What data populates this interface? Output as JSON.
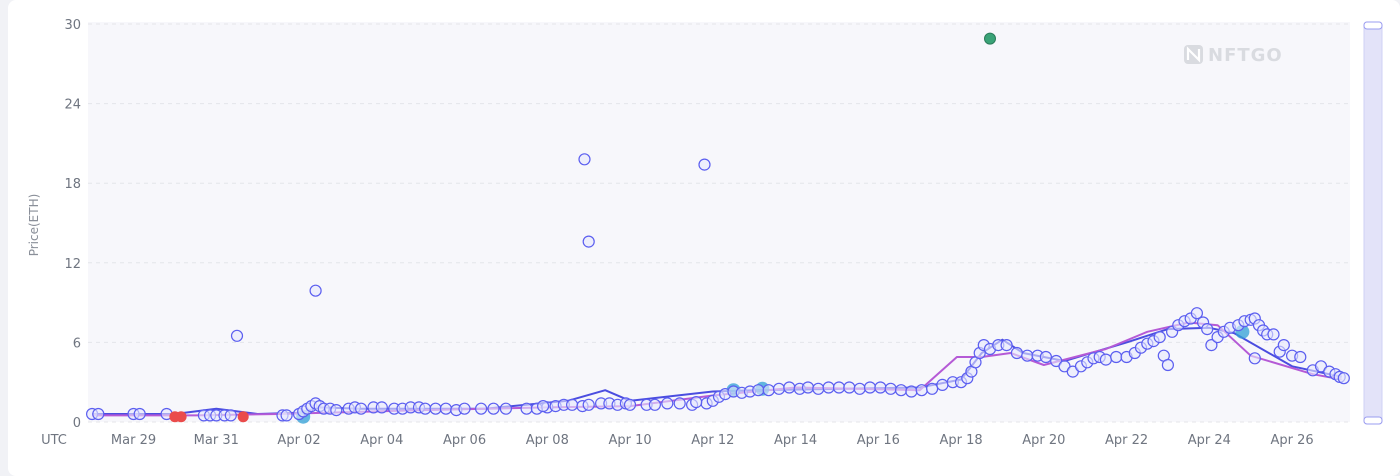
{
  "watermark": "NFTGO",
  "colors": {
    "circle_stroke": "#5b5ef0",
    "circle_fill": "#e6e7fd",
    "line_blue": "#4b4de0",
    "line_purple": "#b55ad6",
    "red_dot": "#ea4b4b",
    "green_dot": "#3aa377",
    "teal_dot": "#2f9fd6",
    "plot_bg": "#f7f7fb",
    "slider_bg": "#e3e3f9"
  },
  "chart_data": {
    "type": "scatter",
    "ylabel": "Price(ETH)",
    "ylim": [
      0,
      30
    ],
    "yticks": [
      "0",
      "6",
      "12",
      "18",
      "24",
      "30"
    ],
    "xaxis_corner_label": "UTC",
    "xticks": [
      {
        "label": "Mar 29",
        "day": 1
      },
      {
        "label": "Mar 31",
        "day": 3
      },
      {
        "label": "Apr 02",
        "day": 5
      },
      {
        "label": "Apr 04",
        "day": 7
      },
      {
        "label": "Apr 06",
        "day": 9
      },
      {
        "label": "Apr 08",
        "day": 11
      },
      {
        "label": "Apr 10",
        "day": 13
      },
      {
        "label": "Apr 12",
        "day": 15
      },
      {
        "label": "Apr 14",
        "day": 17
      },
      {
        "label": "Apr 16",
        "day": 19
      },
      {
        "label": "Apr 18",
        "day": 21
      },
      {
        "label": "Apr 20",
        "day": 23
      },
      {
        "label": "Apr 22",
        "day": 25
      },
      {
        "label": "Apr 24",
        "day": 27
      },
      {
        "label": "Apr 26",
        "day": 29
      }
    ],
    "xlim": [
      -0.1,
      30.4
    ],
    "grid": true,
    "series": [
      {
        "kind": "sales",
        "points": [
          [
            0,
            0.6
          ],
          [
            0.15,
            0.6
          ],
          [
            1.0,
            0.6
          ],
          [
            1.15,
            0.6
          ],
          [
            1.8,
            0.6
          ],
          [
            2.7,
            0.5
          ],
          [
            2.85,
            0.5
          ],
          [
            3.0,
            0.5
          ],
          [
            3.2,
            0.5
          ],
          [
            3.35,
            0.5
          ],
          [
            4.6,
            0.5
          ],
          [
            4.7,
            0.5
          ],
          [
            5.0,
            0.6
          ],
          [
            5.1,
            0.8
          ],
          [
            5.2,
            1.0
          ],
          [
            5.3,
            1.2
          ],
          [
            5.4,
            1.4
          ],
          [
            5.5,
            1.2
          ],
          [
            5.6,
            1.0
          ],
          [
            5.75,
            1.0
          ],
          [
            5.9,
            0.9
          ],
          [
            6.2,
            1.0
          ],
          [
            6.35,
            1.1
          ],
          [
            6.5,
            1.0
          ],
          [
            6.8,
            1.1
          ],
          [
            7.0,
            1.1
          ],
          [
            7.3,
            1.0
          ],
          [
            7.5,
            1.0
          ],
          [
            7.7,
            1.1
          ],
          [
            7.9,
            1.1
          ],
          [
            8.05,
            1.0
          ],
          [
            8.3,
            1.0
          ],
          [
            8.55,
            1.0
          ],
          [
            8.8,
            0.9
          ],
          [
            9.0,
            1.0
          ],
          [
            9.4,
            1.0
          ],
          [
            9.7,
            1.0
          ],
          [
            10.0,
            1.0
          ],
          [
            10.5,
            1.0
          ],
          [
            10.75,
            1.0
          ],
          [
            11.0,
            1.1
          ],
          [
            11.2,
            1.2
          ],
          [
            11.4,
            1.3
          ],
          [
            11.6,
            1.3
          ],
          [
            11.85,
            1.2
          ],
          [
            12.0,
            1.3
          ],
          [
            12.3,
            1.4
          ],
          [
            12.5,
            1.4
          ],
          [
            12.7,
            1.3
          ],
          [
            12.9,
            1.4
          ],
          [
            13.0,
            1.3
          ],
          [
            13.4,
            1.3
          ],
          [
            13.6,
            1.3
          ],
          [
            13.9,
            1.4
          ],
          [
            14.2,
            1.4
          ],
          [
            14.5,
            1.3
          ],
          [
            14.85,
            1.4
          ],
          [
            15.0,
            1.6
          ],
          [
            15.15,
            1.9
          ],
          [
            15.3,
            2.1
          ],
          [
            15.5,
            2.3
          ],
          [
            15.7,
            2.2
          ],
          [
            15.9,
            2.3
          ],
          [
            16.1,
            2.4
          ],
          [
            16.35,
            2.4
          ],
          [
            16.6,
            2.5
          ],
          [
            16.85,
            2.6
          ],
          [
            17.1,
            2.5
          ],
          [
            17.3,
            2.6
          ],
          [
            17.55,
            2.5
          ],
          [
            17.8,
            2.6
          ],
          [
            18.05,
            2.6
          ],
          [
            18.3,
            2.6
          ],
          [
            18.55,
            2.5
          ],
          [
            18.8,
            2.6
          ],
          [
            19.05,
            2.6
          ],
          [
            19.3,
            2.5
          ],
          [
            19.55,
            2.4
          ],
          [
            19.8,
            2.3
          ],
          [
            20.05,
            2.4
          ],
          [
            20.3,
            2.5
          ],
          [
            20.55,
            2.8
          ],
          [
            20.8,
            3.0
          ],
          [
            21.0,
            3.0
          ],
          [
            21.15,
            3.3
          ],
          [
            21.25,
            3.8
          ],
          [
            21.35,
            4.5
          ],
          [
            21.45,
            5.2
          ],
          [
            21.55,
            5.8
          ],
          [
            21.7,
            5.5
          ],
          [
            21.9,
            5.8
          ],
          [
            22.1,
            5.8
          ],
          [
            22.35,
            5.2
          ],
          [
            22.6,
            5.0
          ],
          [
            22.85,
            5.0
          ],
          [
            23.05,
            4.9
          ],
          [
            23.3,
            4.6
          ],
          [
            23.5,
            4.2
          ],
          [
            23.7,
            3.8
          ],
          [
            23.9,
            4.2
          ],
          [
            24.05,
            4.5
          ],
          [
            24.2,
            4.8
          ],
          [
            24.35,
            4.9
          ],
          [
            24.5,
            4.7
          ],
          [
            24.75,
            4.9
          ],
          [
            25.0,
            4.9
          ],
          [
            25.2,
            5.2
          ],
          [
            25.35,
            5.6
          ],
          [
            25.5,
            5.9
          ],
          [
            25.65,
            6.1
          ],
          [
            25.8,
            6.4
          ],
          [
            25.9,
            5.0
          ],
          [
            26.0,
            4.3
          ],
          [
            26.1,
            6.8
          ],
          [
            26.25,
            7.3
          ],
          [
            26.4,
            7.6
          ],
          [
            26.55,
            7.8
          ],
          [
            26.7,
            8.2
          ],
          [
            26.85,
            7.5
          ],
          [
            26.95,
            7.0
          ],
          [
            27.05,
            5.8
          ],
          [
            27.2,
            6.4
          ],
          [
            27.35,
            6.8
          ],
          [
            27.5,
            7.1
          ],
          [
            27.7,
            7.3
          ],
          [
            27.85,
            7.6
          ],
          [
            28.0,
            7.7
          ],
          [
            28.1,
            7.8
          ],
          [
            28.2,
            7.3
          ],
          [
            28.3,
            6.9
          ],
          [
            28.4,
            6.6
          ],
          [
            28.55,
            6.6
          ],
          [
            28.7,
            5.3
          ],
          [
            28.8,
            5.8
          ],
          [
            28.1,
            4.8
          ],
          [
            29.0,
            5.0
          ],
          [
            29.2,
            4.9
          ],
          [
            29.5,
            3.9
          ],
          [
            29.7,
            4.2
          ],
          [
            29.9,
            3.8
          ],
          [
            30.05,
            3.6
          ],
          [
            30.15,
            3.4
          ],
          [
            30.25,
            3.3
          ],
          [
            10.9,
            1.2
          ],
          [
            14.6,
            1.5
          ]
        ]
      },
      {
        "kind": "outliers",
        "points": [
          [
            3.5,
            6.5
          ],
          [
            5.4,
            9.9
          ],
          [
            11.9,
            19.8
          ],
          [
            12.0,
            13.6
          ],
          [
            14.8,
            19.4
          ]
        ]
      },
      {
        "kind": "red",
        "points": [
          [
            2.0,
            0.4
          ],
          [
            2.15,
            0.4
          ],
          [
            3.65,
            0.4
          ]
        ]
      },
      {
        "kind": "teal",
        "points": [
          [
            5.1,
            0.4
          ],
          [
            15.5,
            2.4
          ],
          [
            16.2,
            2.5
          ],
          [
            27.8,
            6.8
          ]
        ]
      },
      {
        "kind": "green",
        "points": [
          [
            21.7,
            28.9
          ]
        ]
      },
      {
        "kind": "avg-line-blue",
        "points": [
          [
            0,
            0.6
          ],
          [
            2.0,
            0.6
          ],
          [
            3.0,
            1.0
          ],
          [
            4.0,
            0.6
          ],
          [
            5.0,
            0.7
          ],
          [
            5.5,
            1.1
          ],
          [
            6.5,
            1.0
          ],
          [
            9.5,
            1.0
          ],
          [
            11.5,
            1.6
          ],
          [
            12.4,
            2.4
          ],
          [
            13.0,
            1.6
          ],
          [
            15.0,
            2.3
          ],
          [
            16.0,
            2.4
          ],
          [
            20.0,
            2.6
          ],
          [
            21.0,
            3.2
          ],
          [
            21.5,
            5.2
          ],
          [
            22.0,
            6.2
          ],
          [
            22.5,
            5.2
          ],
          [
            23.5,
            4.6
          ],
          [
            25.0,
            6.0
          ],
          [
            26.0,
            7.0
          ],
          [
            27.0,
            7.1
          ],
          [
            27.6,
            6.7
          ],
          [
            29.0,
            4.2
          ],
          [
            30.2,
            3.4
          ]
        ]
      },
      {
        "kind": "avg-line-purple",
        "points": [
          [
            0,
            0.5
          ],
          [
            2.5,
            0.5
          ],
          [
            4.5,
            0.6
          ],
          [
            8.0,
            0.9
          ],
          [
            11.0,
            1.1
          ],
          [
            13.0,
            1.2
          ],
          [
            15.0,
            2.0
          ],
          [
            17.0,
            2.6
          ],
          [
            20.0,
            2.4
          ],
          [
            20.9,
            4.9
          ],
          [
            21.5,
            4.9
          ],
          [
            22.2,
            5.2
          ],
          [
            23.0,
            4.3
          ],
          [
            24.5,
            5.5
          ],
          [
            25.5,
            6.8
          ],
          [
            26.5,
            7.5
          ],
          [
            27.2,
            7.3
          ],
          [
            28.0,
            5.0
          ],
          [
            29.5,
            3.6
          ],
          [
            30.2,
            3.2
          ]
        ]
      }
    ]
  }
}
